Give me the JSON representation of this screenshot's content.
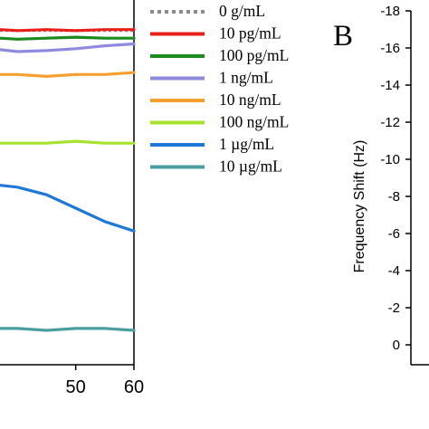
{
  "chart_data": [
    {
      "type": "line",
      "title": "",
      "xlabel": "",
      "ylabel": "",
      "x_ticks": [
        50,
        60
      ],
      "xlim": [
        37,
        60
      ],
      "ylim": [
        -18.5,
        0.6
      ],
      "grid": false,
      "legend_placement": "right, outside plot",
      "series": [
        {
          "name": "0 g/mL",
          "color": "#8c8c8c",
          "style": "dotted",
          "x": [
            37,
            40,
            45,
            50,
            55,
            60
          ],
          "y": [
            -16.9,
            -16.9,
            -16.9,
            -16.9,
            -16.9,
            -16.9
          ]
        },
        {
          "name": "10 pg/mL",
          "color": "#e8201a",
          "style": "solid",
          "x": [
            37,
            40,
            45,
            50,
            55,
            60
          ],
          "y": [
            -16.95,
            -16.9,
            -16.95,
            -16.9,
            -16.95,
            -16.95
          ]
        },
        {
          "name": "100 pg/mL",
          "color": "#1c8a1c",
          "style": "solid",
          "x": [
            37,
            40,
            45,
            50,
            55,
            60
          ],
          "y": [
            -16.5,
            -16.45,
            -16.5,
            -16.55,
            -16.5,
            -16.5
          ]
        },
        {
          "name": "1 ng/mL",
          "color": "#8f8ae0",
          "style": "solid",
          "x": [
            37,
            40,
            45,
            50,
            55,
            60
          ],
          "y": [
            -15.9,
            -15.8,
            -15.85,
            -15.95,
            -16.1,
            -16.2
          ]
        },
        {
          "name": "10 ng/mL",
          "color": "#f4a030",
          "style": "solid",
          "x": [
            37,
            40,
            45,
            50,
            55,
            60
          ],
          "y": [
            -14.6,
            -14.6,
            -14.5,
            -14.6,
            -14.6,
            -14.7
          ]
        },
        {
          "name": "100 ng/mL",
          "color": "#a6e22e",
          "style": "solid",
          "x": [
            37,
            40,
            45,
            50,
            55,
            60
          ],
          "y": [
            -11.0,
            -11.0,
            -11.0,
            -11.1,
            -11.0,
            -11.0
          ]
        },
        {
          "name": "1 µg/mL",
          "color": "#1f78d8",
          "style": "solid",
          "x": [
            37,
            40,
            45,
            50,
            55,
            60
          ],
          "y": [
            -8.8,
            -8.7,
            -8.3,
            -7.6,
            -6.9,
            -6.4
          ]
        },
        {
          "name": "10 µg/mL",
          "color": "#4a9ea0",
          "style": "solid",
          "x": [
            37,
            40,
            45,
            50,
            55,
            60
          ],
          "y": [
            -1.3,
            -1.3,
            -1.2,
            -1.3,
            -1.3,
            -1.2
          ]
        }
      ]
    },
    {
      "type": "line",
      "title": "",
      "panel_label": "B",
      "xlabel": "",
      "ylabel": "Frequency Shift (Hz)",
      "y_ticks": [
        -18,
        -16,
        -14,
        -12,
        -10,
        -8,
        -6,
        -4,
        -2,
        0
      ],
      "ylim": [
        -18,
        0.6
      ],
      "grid": false,
      "series": []
    }
  ]
}
